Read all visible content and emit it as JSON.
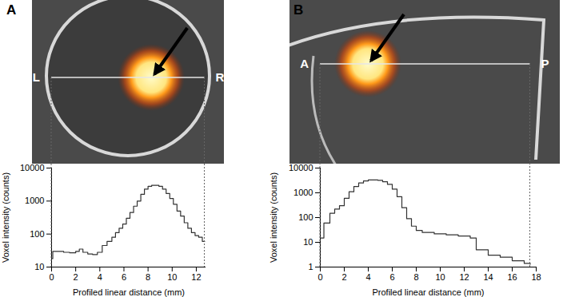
{
  "chart_data": [
    {
      "type": "line",
      "title": "A",
      "annotations": [
        "L",
        "R"
      ],
      "xlabel": "Profiled linear distance (mm)",
      "ylabel": "Voxel intensity (counts)",
      "x": [
        0,
        0.1,
        0.5,
        1,
        1.5,
        2,
        2.3,
        2.6,
        3,
        3.4,
        3.8,
        4.2,
        4.6,
        5,
        5.3,
        5.6,
        5.9,
        6.2,
        6.5,
        6.8,
        7.1,
        7.4,
        7.7,
        8,
        8.3,
        8.6,
        8.9,
        9.2,
        9.5,
        9.8,
        10.1,
        10.4,
        10.7,
        11,
        11.3,
        11.6,
        11.9,
        12.2,
        12.5,
        12.7
      ],
      "values": [
        18,
        30,
        30,
        28,
        27,
        30,
        35,
        28,
        25,
        24,
        28,
        45,
        60,
        80,
        110,
        150,
        200,
        300,
        450,
        700,
        1000,
        1600,
        2300,
        2800,
        3000,
        3000,
        2800,
        2300,
        1700,
        1200,
        800,
        500,
        350,
        220,
        150,
        110,
        90,
        80,
        60,
        60
      ],
      "xlim": [
        0,
        12.8
      ],
      "xticks": [
        0,
        2,
        4,
        6,
        8,
        10,
        12
      ],
      "ylim": [
        10,
        10000
      ],
      "yticks": [
        10,
        100,
        1000,
        10000
      ],
      "log": "y",
      "line_style": "step",
      "color": "#333333"
    },
    {
      "type": "line",
      "title": "B",
      "annotations": [
        "A",
        "P"
      ],
      "xlabel": "Profiled linear distance (mm)",
      "ylabel": "Voxel intensity (counts)",
      "x": [
        0,
        0.3,
        0.8,
        1.2,
        1.6,
        2,
        2.4,
        2.8,
        3.2,
        3.6,
        4,
        4.4,
        4.8,
        5.2,
        5.6,
        6,
        6.4,
        6.8,
        7.2,
        7.6,
        8,
        8.5,
        9,
        9.5,
        10,
        10.5,
        11,
        11.5,
        12,
        12.5,
        13,
        14,
        15,
        16,
        17,
        17.5
      ],
      "values": [
        15,
        60,
        150,
        220,
        300,
        600,
        1100,
        1800,
        2500,
        3000,
        3300,
        3300,
        3200,
        2800,
        2200,
        1400,
        700,
        250,
        90,
        45,
        30,
        25,
        25,
        22,
        22,
        20,
        20,
        18,
        18,
        15,
        5,
        3,
        2.5,
        1.8,
        1.4,
        1.3
      ],
      "xlim": [
        0,
        18
      ],
      "xticks": [
        0,
        2,
        4,
        6,
        8,
        10,
        12,
        14,
        16,
        18
      ],
      "ylim": [
        1,
        10000
      ],
      "yticks": [
        1,
        10,
        100,
        1000,
        10000
      ],
      "log": "y",
      "line_style": "step",
      "color": "#333333"
    }
  ]
}
